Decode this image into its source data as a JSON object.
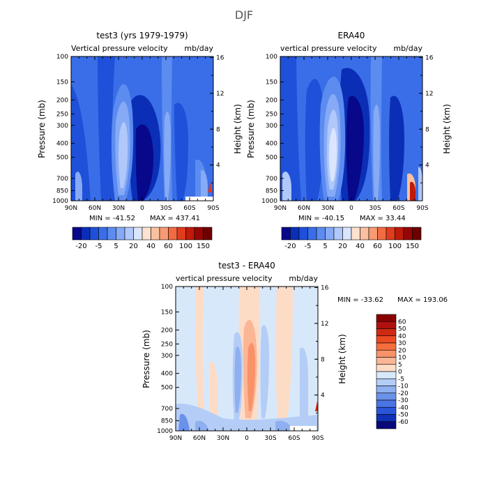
{
  "figure": {
    "title": "DJF"
  },
  "chart_data": [
    {
      "type": "heatmap",
      "id": "model",
      "title": "test3 (yrs 1979-1979)",
      "subtitle_left": "Vertical pressure velocity",
      "subtitle_right": "mb/day",
      "ylabel": "Pressure (mb)",
      "ylabel_right": "Height (km)",
      "x_ticks": [
        "90N",
        "60N",
        "30N",
        "0",
        "30S",
        "60S",
        "90S"
      ],
      "y_ticks": [
        "100",
        "150",
        "200",
        "250",
        "300",
        "400",
        "500",
        "700",
        "850",
        "1000"
      ],
      "y_right_ticks": [
        "16",
        "12",
        "8",
        "4"
      ],
      "xlim": [
        90,
        -90
      ],
      "ylim": [
        1000,
        100
      ],
      "min_label": "MIN = -41.52",
      "max_label": "MAX = 437.41",
      "colorbar_labels": [
        "-20",
        "-5",
        "5",
        "20",
        "40",
        "60",
        "100",
        "150"
      ],
      "colorbar_colors": [
        "#08088a",
        "#0a2fb6",
        "#1e50d9",
        "#3a6ee8",
        "#5c8cf0",
        "#86aaf5",
        "#b0c8fa",
        "#dae6fd",
        "#fde2cf",
        "#fbc0a0",
        "#f89a72",
        "#f26b43",
        "#e03c1e",
        "#c01a0a",
        "#960606",
        "#6e0000"
      ]
    },
    {
      "type": "heatmap",
      "id": "obs",
      "title": "ERA40",
      "subtitle_left": "vertical pressure velocity",
      "subtitle_right": "mb/day",
      "ylabel": "Pressure (mb)",
      "ylabel_right": "Height (km)",
      "x_ticks": [
        "90N",
        "60N",
        "30N",
        "0",
        "30S",
        "60S",
        "90S"
      ],
      "y_ticks": [
        "100",
        "150",
        "200",
        "250",
        "300",
        "400",
        "500",
        "700",
        "850",
        "1000"
      ],
      "y_right_ticks": [
        "16",
        "12",
        "8",
        "4"
      ],
      "xlim": [
        90,
        -90
      ],
      "ylim": [
        1000,
        100
      ],
      "min_label": "MIN = -40.15",
      "max_label": "MAX = 33.44",
      "colorbar_labels": [
        "-20",
        "-5",
        "5",
        "20",
        "40",
        "60",
        "100",
        "150"
      ],
      "colorbar_colors": [
        "#08088a",
        "#0a2fb6",
        "#1e50d9",
        "#3a6ee8",
        "#5c8cf0",
        "#86aaf5",
        "#b0c8fa",
        "#dae6fd",
        "#fde2cf",
        "#fbc0a0",
        "#f89a72",
        "#f26b43",
        "#e03c1e",
        "#c01a0a",
        "#960606",
        "#6e0000"
      ]
    },
    {
      "type": "heatmap",
      "id": "diff",
      "title": "test3 - ERA40",
      "subtitle_left": "vertical pressure velocity",
      "subtitle_right": "mb/day",
      "ylabel": "Pressure (mb)",
      "ylabel_right": "Height (km)",
      "x_ticks": [
        "90N",
        "60N",
        "30N",
        "0",
        "30S",
        "60S",
        "90S"
      ],
      "y_ticks": [
        "100",
        "150",
        "200",
        "250",
        "300",
        "400",
        "500",
        "700",
        "850",
        "1000"
      ],
      "y_right_ticks": [
        "16",
        "12",
        "8",
        "4"
      ],
      "xlim": [
        90,
        -90
      ],
      "ylim": [
        1000,
        100
      ],
      "min_label": "MIN = -33.62",
      "max_label": "MAX = 193.06",
      "colorbar_labels": [
        "60",
        "50",
        "40",
        "30",
        "20",
        "10",
        "5",
        "0",
        "-5",
        "-10",
        "-20",
        "-30",
        "-40",
        "-50",
        "-60"
      ],
      "colorbar_colors": [
        "#8a0000",
        "#b01010",
        "#d02a12",
        "#ec4a22",
        "#f56e3c",
        "#f89268",
        "#fbb695",
        "#fddcc6",
        "#d8e8fb",
        "#b4cdf6",
        "#8eb0f0",
        "#6a92eb",
        "#4a74e3",
        "#2a55d8",
        "#1030b8",
        "#08087a"
      ]
    }
  ]
}
